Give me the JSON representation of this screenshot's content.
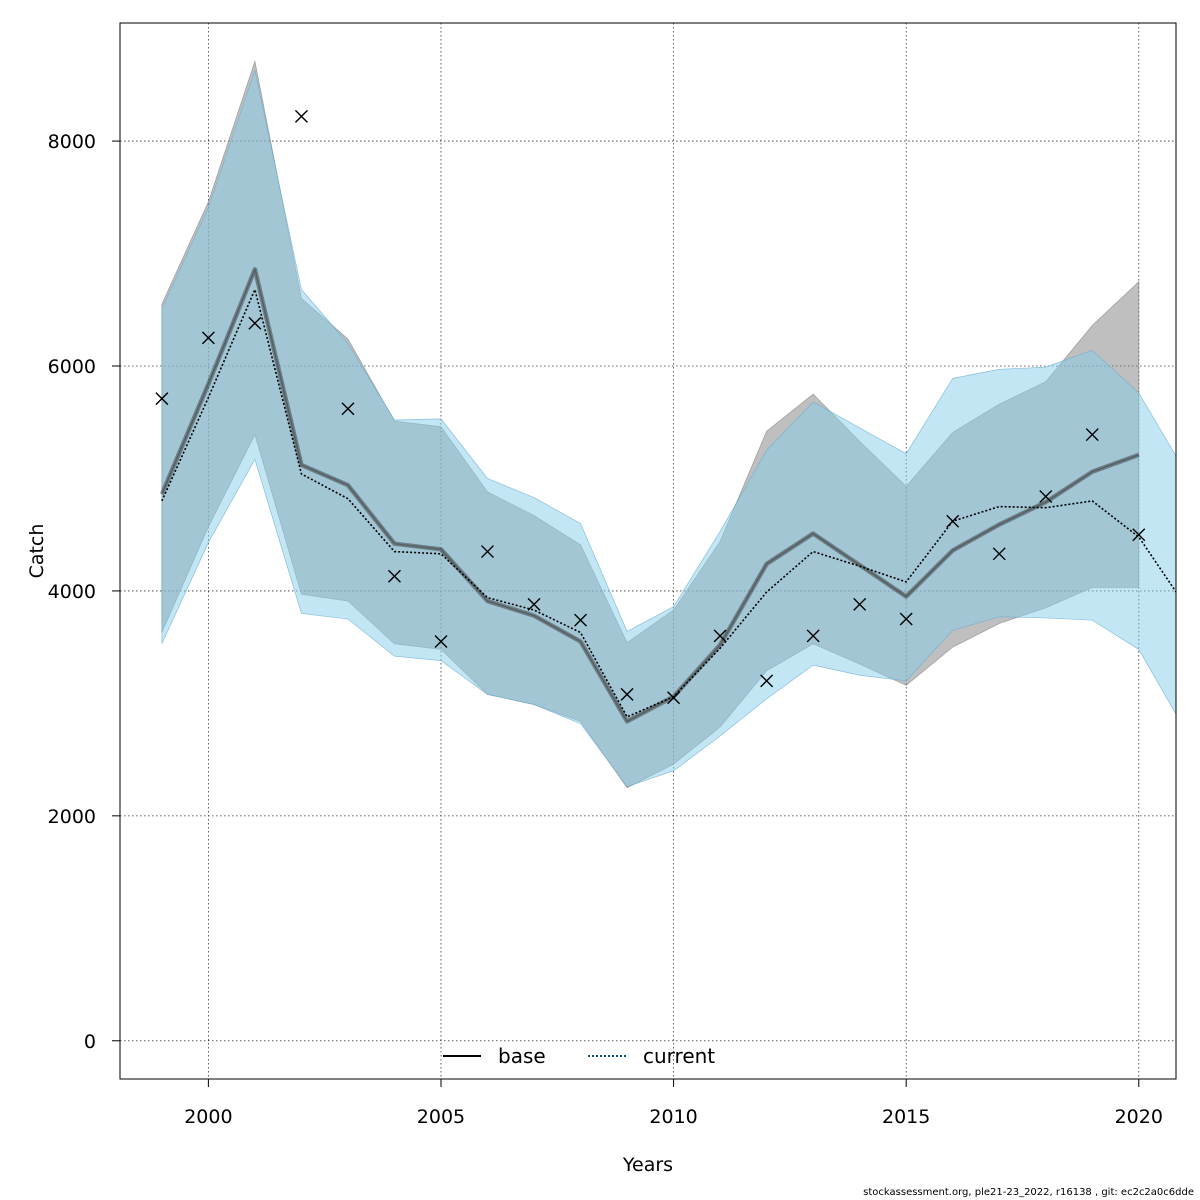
{
  "chart_data": {
    "type": "line",
    "xlabel": "Years",
    "ylabel": "Catch",
    "xlim": [
      1998.1,
      2020.8
    ],
    "ylim": [
      -340,
      9050
    ],
    "x_ticks": [
      2000,
      2005,
      2010,
      2015,
      2020
    ],
    "y_ticks": [
      0,
      2000,
      4000,
      6000,
      8000
    ],
    "grid": true,
    "legend_position": "bottom-center",
    "series": [
      {
        "name": "base",
        "line_style": "solid",
        "line_color": "#000000",
        "band_color": "#808080",
        "x": [
          1999,
          2000,
          2001,
          2002,
          2003,
          2004,
          2005,
          2006,
          2007,
          2008,
          2009,
          2010,
          2011,
          2012,
          2013,
          2014,
          2015,
          2016,
          2017,
          2018,
          2019,
          2020
        ],
        "values": [
          4860,
          5840,
          6860,
          5120,
          4940,
          4420,
          4370,
          3910,
          3780,
          3550,
          2840,
          3060,
          3520,
          4240,
          4510,
          4230,
          3950,
          4360,
          4590,
          4790,
          5060,
          5210
        ],
        "lower": [
          3630,
          4570,
          5390,
          3970,
          3910,
          3530,
          3480,
          3080,
          2990,
          2840,
          2250,
          2460,
          2790,
          3290,
          3530,
          3350,
          3160,
          3500,
          3710,
          3850,
          4030,
          4030
        ],
        "upper": [
          6550,
          7460,
          8710,
          6600,
          6240,
          5510,
          5460,
          4880,
          4670,
          4410,
          3540,
          3830,
          4440,
          5420,
          5750,
          5330,
          4930,
          5410,
          5660,
          5860,
          6360,
          6750
        ]
      },
      {
        "name": "current",
        "line_style": "dotted",
        "line_color": "#0a4f7a",
        "band_color": "#87ceeb",
        "x": [
          1999,
          2000,
          2001,
          2002,
          2003,
          2004,
          2005,
          2006,
          2007,
          2008,
          2009,
          2010,
          2011,
          2012,
          2013,
          2014,
          2015,
          2016,
          2017,
          2018,
          2019,
          2020,
          2021
        ],
        "values": [
          4800,
          5720,
          6680,
          5040,
          4820,
          4350,
          4330,
          3940,
          3830,
          3630,
          2880,
          3060,
          3490,
          3990,
          4350,
          4220,
          4080,
          4620,
          4750,
          4740,
          4800,
          4480,
          3870
        ],
        "lower": [
          3530,
          4430,
          5170,
          3800,
          3750,
          3420,
          3380,
          3080,
          2990,
          2820,
          2260,
          2400,
          2710,
          3040,
          3340,
          3250,
          3200,
          3650,
          3770,
          3760,
          3740,
          3480,
          2760
        ],
        "upper": [
          6510,
          7410,
          8630,
          6680,
          6200,
          5520,
          5530,
          5000,
          4830,
          4600,
          3640,
          3860,
          4530,
          5250,
          5680,
          5450,
          5220,
          5890,
          5970,
          5990,
          6140,
          5760,
          5060
        ]
      }
    ],
    "observations": {
      "marker": "x",
      "x": [
        1999,
        2000,
        2001,
        2002,
        2003,
        2004,
        2005,
        2006,
        2007,
        2008,
        2009,
        2010,
        2011,
        2012,
        2013,
        2014,
        2015,
        2016,
        2017,
        2018,
        2019,
        2020
      ],
      "values": [
        5710,
        6250,
        6380,
        8220,
        5620,
        4130,
        3550,
        4350,
        3880,
        3740,
        3080,
        3050,
        3600,
        3200,
        3600,
        3880,
        3750,
        4620,
        4330,
        4840,
        5390,
        4500
      ]
    }
  },
  "footer_text": "stockassessment.org, ple21-23_2022, r16138 , git: ec2c2a0c6dde"
}
